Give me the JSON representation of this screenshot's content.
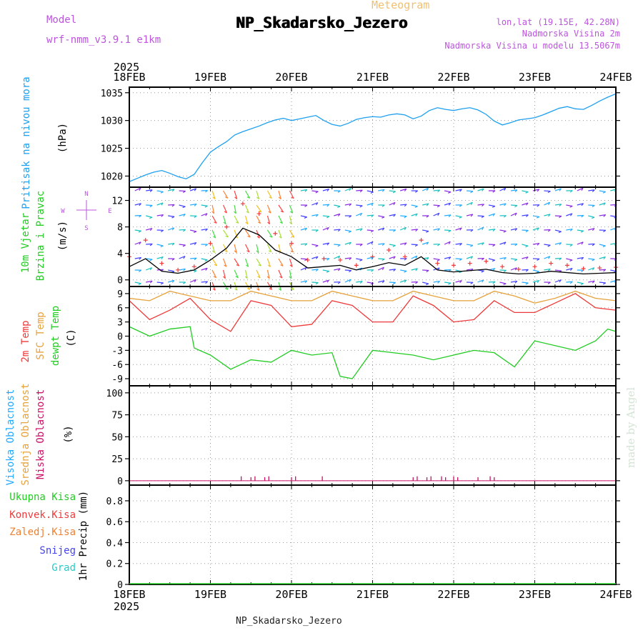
{
  "header": {
    "meteogram_label": "Meteogram",
    "station_title": "NP_Skadarsko_Jezero",
    "model_label": "Model",
    "model_name": "wrf-nmm_v3.9.1 e1km",
    "lonlat": "lon,lat (19.15E, 42.28N)",
    "elevation": "Nadmorska Visina 2m",
    "model_elevation": "Nadmorska Visina u modelu 13.5067m"
  },
  "footer": {
    "station": "NP_Skadarsko_Jezero"
  },
  "watermark": "made by Angel",
  "time_axis": {
    "year": "2025",
    "ticks": [
      "18FEB",
      "19FEB",
      "20FEB",
      "21FEB",
      "22FEB",
      "23FEB",
      "24FEB"
    ]
  },
  "colors": {
    "pressure": "#1ea0f0",
    "temp2m": "#ee3a3a",
    "sfc_temp": "#e6a23c",
    "dewpoint": "#22cc22",
    "wind_mean": "#000000",
    "gust_marker": "#ee3a3a",
    "cloud_high": "#22aaff",
    "cloud_mid": "#e6a23c",
    "cloud_low": "#cc1166",
    "precip_total": "#22cc22",
    "precip_conv": "#ee3a3a",
    "precip_freezing": "#f08030",
    "precip_snow": "#4444ee",
    "precip_hail": "#22cccc",
    "grid": "#999999",
    "meteogram_label": "#f0c070",
    "model_text": "#bb55dd",
    "watermark": "#d4e4d4"
  },
  "chart_data": [
    {
      "type": "line",
      "panel": "pressure",
      "ylabel_lines": [
        "Pritisak na nivou mora"
      ],
      "unit": "(hPa)",
      "yticks": [
        1020,
        1025,
        1030,
        1035
      ],
      "ylim": [
        1018,
        1036
      ],
      "grid": true,
      "series": [
        {
          "color": "#1ea0f0",
          "x": [
            0,
            0.1,
            0.2,
            0.3,
            0.4,
            0.5,
            0.6,
            0.7,
            0.8,
            0.9,
            1.0,
            1.1,
            1.2,
            1.3,
            1.4,
            1.5,
            1.6,
            1.7,
            1.8,
            1.9,
            2.0,
            2.1,
            2.2,
            2.3,
            2.4,
            2.5,
            2.6,
            2.7,
            2.8,
            2.9,
            3.0,
            3.1,
            3.2,
            3.3,
            3.4,
            3.5,
            3.6,
            3.7,
            3.8,
            3.9,
            4.0,
            4.1,
            4.2,
            4.3,
            4.4,
            4.5,
            4.6,
            4.7,
            4.8,
            4.9,
            5.0,
            5.1,
            5.2,
            5.3,
            5.4,
            5.5,
            5.6,
            5.7,
            5.8,
            5.9,
            6.0
          ],
          "y": [
            1019.0,
            1019.6,
            1020.2,
            1020.7,
            1021.0,
            1020.5,
            1019.9,
            1019.5,
            1020.3,
            1022.4,
            1024.3,
            1025.3,
            1026.2,
            1027.4,
            1028.0,
            1028.5,
            1029.0,
            1029.6,
            1030.1,
            1030.4,
            1030.0,
            1030.3,
            1030.6,
            1030.9,
            1030.0,
            1029.3,
            1029.0,
            1029.5,
            1030.2,
            1030.5,
            1030.7,
            1030.6,
            1031.0,
            1031.2,
            1031.0,
            1030.3,
            1030.8,
            1031.8,
            1032.3,
            1032.0,
            1031.8,
            1032.1,
            1032.3,
            1031.9,
            1031.1,
            1029.9,
            1029.2,
            1029.6,
            1030.1,
            1030.3,
            1030.5,
            1031.0,
            1031.6,
            1032.2,
            1032.5,
            1032.1,
            1032.0,
            1032.7,
            1033.5,
            1034.2,
            1034.8
          ]
        }
      ]
    },
    {
      "type": "line",
      "panel": "wind",
      "ylabel_lines": [
        "10m Vjetar",
        "Brzina i Pravac"
      ],
      "unit": "(m/s)",
      "compass_labels": [
        "N",
        "E",
        "S",
        "W"
      ],
      "yticks": [
        0,
        4,
        8,
        12
      ],
      "ylim": [
        -1,
        14
      ],
      "grid": true,
      "series": [
        {
          "color": "#000000",
          "x": [
            0,
            0.2,
            0.4,
            0.6,
            0.8,
            1.0,
            1.2,
            1.4,
            1.6,
            1.8,
            2.0,
            2.2,
            2.4,
            2.6,
            2.8,
            3.0,
            3.2,
            3.4,
            3.6,
            3.8,
            4.0,
            4.2,
            4.4,
            4.6,
            4.8,
            5.0,
            5.2,
            5.4,
            5.6,
            5.8,
            6.0
          ],
          "y": [
            2.0,
            3.2,
            1.3,
            1.0,
            1.5,
            3.0,
            4.8,
            7.8,
            6.8,
            4.5,
            3.5,
            1.8,
            2.0,
            2.2,
            1.5,
            2.0,
            2.6,
            2.2,
            3.5,
            1.5,
            1.2,
            1.4,
            1.6,
            1.1,
            0.9,
            1.0,
            1.3,
            1.1,
            0.9,
            1.0,
            1.1
          ]
        },
        {
          "color": "#ee3a3a",
          "style": "markers",
          "x": [
            0,
            0.2,
            0.4,
            0.6,
            0.8,
            1.0,
            1.2,
            1.4,
            1.6,
            1.8,
            2.0,
            2.2,
            2.4,
            2.6,
            2.8,
            3.0,
            3.2,
            3.4,
            3.6,
            3.8,
            4.0,
            4.2,
            4.4,
            4.6,
            4.8,
            5.0,
            5.2,
            5.4,
            5.6,
            5.8,
            6.0
          ],
          "y": [
            3.5,
            6.0,
            2.5,
            1.5,
            2.0,
            5.5,
            8.0,
            11.5,
            10.0,
            7.0,
            5.5,
            3.0,
            3.2,
            3.0,
            2.2,
            3.5,
            4.5,
            3.5,
            6.0,
            2.5,
            2.2,
            2.5,
            2.8,
            2.0,
            1.6,
            2.0,
            2.5,
            2.2,
            1.7,
            1.8,
            1.9
          ]
        }
      ]
    },
    {
      "type": "line",
      "panel": "temperature",
      "ylabel_lines": [
        "2m Temp",
        "SFC Temp",
        "dewpt Temp"
      ],
      "unit": "(C)",
      "yticks": [
        -9,
        -6,
        -3,
        0,
        3,
        6,
        9
      ],
      "ylim": [
        -10.5,
        10.5
      ],
      "grid": true,
      "series": [
        {
          "color": "#ee3a3a",
          "x": [
            0,
            0.25,
            0.5,
            0.75,
            1.0,
            1.25,
            1.5,
            1.75,
            2.0,
            2.25,
            2.5,
            2.75,
            3.0,
            3.25,
            3.5,
            3.75,
            4.0,
            4.25,
            4.5,
            4.75,
            5.0,
            5.25,
            5.5,
            5.75,
            6.0
          ],
          "y": [
            7.5,
            3.5,
            5.5,
            8.0,
            3.5,
            1.0,
            7.5,
            6.5,
            2.0,
            2.5,
            7.5,
            6.5,
            3.0,
            3.0,
            8.5,
            6.5,
            3.0,
            3.5,
            7.5,
            5.0,
            5.0,
            7.0,
            9.0,
            6.0,
            5.5
          ]
        },
        {
          "color": "#e6a23c",
          "x": [
            0,
            0.25,
            0.5,
            0.75,
            1.0,
            1.25,
            1.5,
            1.75,
            2.0,
            2.25,
            2.5,
            2.75,
            3.0,
            3.25,
            3.5,
            3.75,
            4.0,
            4.25,
            4.5,
            4.75,
            5.0,
            5.25,
            5.5,
            5.75,
            6.0
          ],
          "y": [
            8.0,
            7.5,
            9.5,
            8.5,
            7.5,
            7.5,
            9.5,
            8.5,
            7.5,
            7.5,
            9.5,
            8.5,
            7.5,
            7.5,
            9.5,
            8.5,
            7.5,
            7.5,
            9.5,
            8.5,
            7.0,
            8.0,
            9.5,
            8.0,
            7.5
          ]
        },
        {
          "color": "#22cc22",
          "x": [
            0,
            0.25,
            0.5,
            0.75,
            0.8,
            1.0,
            1.25,
            1.5,
            1.75,
            2.0,
            2.25,
            2.5,
            2.6,
            2.75,
            3.0,
            3.25,
            3.5,
            3.75,
            4.0,
            4.25,
            4.5,
            4.75,
            5.0,
            5.25,
            5.5,
            5.75,
            5.9,
            6.0
          ],
          "y": [
            2.0,
            0.0,
            1.5,
            2.0,
            -2.5,
            -4.0,
            -7.0,
            -5.0,
            -5.5,
            -3.0,
            -4.0,
            -3.5,
            -8.5,
            -9.0,
            -3.0,
            -3.5,
            -4.0,
            -5.0,
            -4.0,
            -3.0,
            -3.5,
            -6.5,
            -1.0,
            -2.0,
            -3.0,
            -1.0,
            1.5,
            1.0
          ]
        }
      ]
    },
    {
      "type": "bar",
      "panel": "clouds",
      "ylabel_lines": [
        "Visoka Oblacnost",
        "Srednja Oblacnost",
        "Niska Oblacnost"
      ],
      "unit": "(%)",
      "yticks": [
        0,
        25,
        50,
        75,
        100
      ],
      "ylim": [
        -5,
        108
      ],
      "grid": true,
      "series": [
        {
          "name": "",
          "color": "#cc1166",
          "x": [
            1.38,
            1.5,
            1.55,
            1.67,
            1.72,
            2.0,
            2.05,
            2.38,
            3.5,
            3.55,
            3.67,
            3.72,
            3.85,
            3.9,
            4.0,
            4.05,
            4.3,
            4.45,
            4.5
          ],
          "values": [
            5,
            4,
            5,
            4,
            5,
            4,
            5,
            5,
            4,
            5,
            4,
            5,
            5,
            4,
            5,
            4,
            4,
            5,
            4
          ]
        }
      ]
    },
    {
      "type": "bar",
      "panel": "precipitation",
      "ylabel_lines": [
        "1hr Precip (mm)"
      ],
      "legend": [
        "Ukupna Kisa",
        "Konvek.Kisa",
        "Zaledj.Kisa",
        "Snijeg",
        "Grad"
      ],
      "yticks": [
        0,
        0.2,
        0.4,
        0.6,
        0.8
      ],
      "ylim": [
        0,
        0.95
      ],
      "grid": true,
      "series": []
    }
  ]
}
